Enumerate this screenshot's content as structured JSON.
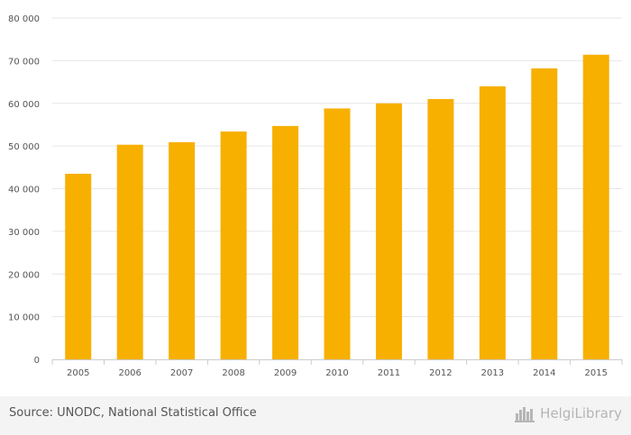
{
  "chart_data": {
    "type": "bar",
    "categories": [
      "2005",
      "2006",
      "2007",
      "2008",
      "2009",
      "2010",
      "2011",
      "2012",
      "2013",
      "2014",
      "2015"
    ],
    "values": [
      43500,
      50300,
      50900,
      53400,
      54700,
      58800,
      60000,
      61000,
      64000,
      68200,
      71400
    ],
    "yticks": [
      0,
      10000,
      20000,
      30000,
      40000,
      50000,
      60000,
      70000,
      80000
    ],
    "ytick_labels": [
      "0",
      "10 000",
      "20 000",
      "30 000",
      "40 000",
      "50 000",
      "60 000",
      "70 000",
      "80 000"
    ],
    "ylim": [
      0,
      80000
    ],
    "title": "",
    "xlabel": "",
    "ylabel": "",
    "grid": true,
    "bar_color": "#f7b000"
  },
  "footer": {
    "source": "Source: UNODC, National Statistical Office",
    "brand_name": "HelgiLibrary",
    "brand_icon": "city-skyline-icon"
  },
  "colors": {
    "bar": "#f7b000",
    "gridline": "#e6e6e6",
    "footer_bg": "#f4f4f4",
    "text": "#555555",
    "brand": "#b5b5b5"
  }
}
